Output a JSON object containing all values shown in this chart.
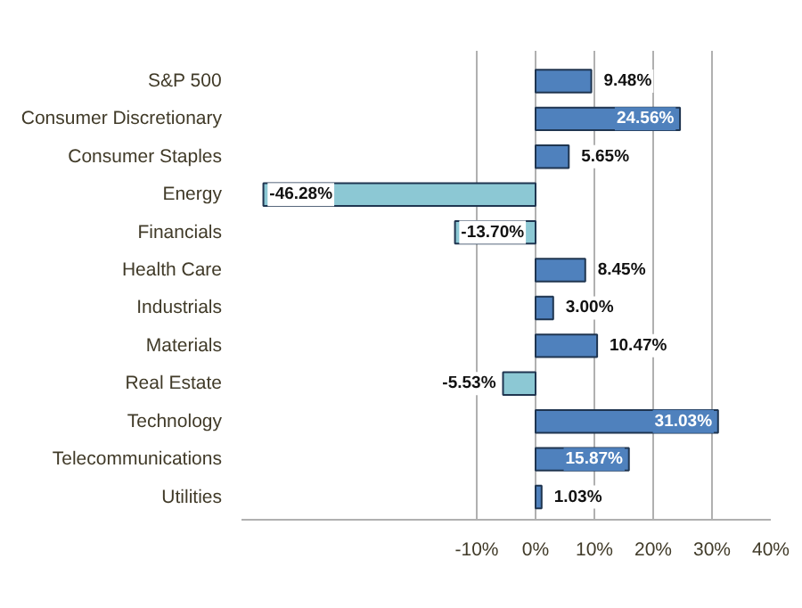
{
  "chart_data": {
    "type": "bar",
    "orientation": "horizontal",
    "categories": [
      "S&P 500",
      "Consumer Discretionary",
      "Consumer Staples",
      "Energy",
      "Financials",
      "Health Care",
      "Industrials",
      "Materials",
      "Real Estate",
      "Technology",
      "Telecommunications",
      "Utilities"
    ],
    "values": [
      9.48,
      24.56,
      5.65,
      -46.28,
      -13.7,
      8.45,
      3.0,
      10.47,
      -5.53,
      31.03,
      15.87,
      1.03
    ],
    "value_labels": [
      "9.48%",
      "24.56%",
      "5.65%",
      "-46.28%",
      "-13.70%",
      "8.45%",
      "3.00%",
      "10.47%",
      "-5.53%",
      "31.03%",
      "15.87%",
      "1.03%"
    ],
    "colors": [
      "#4f81bd",
      "#4f81bd",
      "#4f81bd",
      "#8cc8d4",
      "#8cc8d4",
      "#4f81bd",
      "#4f81bd",
      "#4f81bd",
      "#8cc8d4",
      "#4f81bd",
      "#4f81bd",
      "#4f81bd"
    ],
    "xlim": [
      -50,
      40
    ],
    "xticks": [
      {
        "value": -10,
        "label": "-10%"
      },
      {
        "value": 0,
        "label": "0%"
      },
      {
        "value": 10,
        "label": "10%"
      },
      {
        "value": 20,
        "label": "20%"
      },
      {
        "value": 30,
        "label": "30%"
      },
      {
        "value": 40,
        "label": "40%"
      }
    ],
    "grid": "x"
  }
}
